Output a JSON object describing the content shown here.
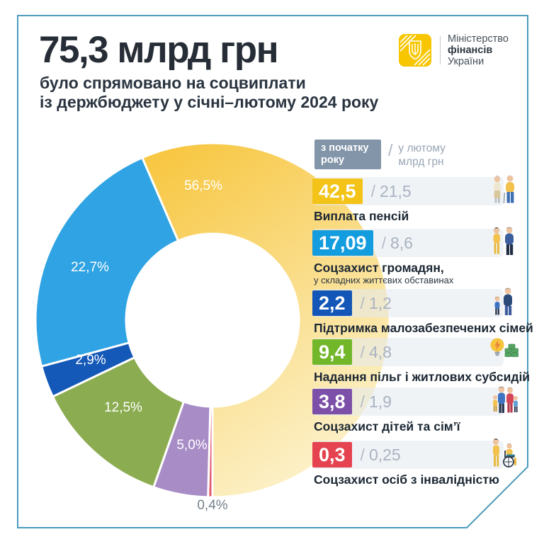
{
  "page": {
    "card_border_color": "#4C9CBE",
    "background": "#FFFFFF"
  },
  "header": {
    "amount": "75,3 млрд грн",
    "subtitle_line1": "було спрямовано на соцвиплати",
    "subtitle_line2": "із держбюджету у січні–лютому 2024 року"
  },
  "logo": {
    "line1": "Міністерство",
    "line2": "фінансів",
    "line3": "України"
  },
  "legend": {
    "header_box_label": "з початку року",
    "separator": "/",
    "header_right_label": "у лютому млрд грн",
    "items": [
      {
        "value": "42,5",
        "feb": "21,5",
        "label": "Виплата пенсій",
        "box_color": "#F3C317",
        "icon": "pensioners-icon"
      },
      {
        "value": "17,09",
        "feb": "8,6",
        "label": "Соцзахист громадян,",
        "sub": "у складних життєвих обставинах",
        "box_color": "#149DDE",
        "icon": "citizens-icon"
      },
      {
        "value": "2,2",
        "feb": "1,2",
        "label": "Підтримка малозабезпечених сімей",
        "box_color": "#1356B8",
        "icon": "low-income-family-icon"
      },
      {
        "value": "9,4",
        "feb": "4,8",
        "label": "Надання пільг і житлових субсидій",
        "box_color": "#72B62A",
        "icon": "subsidies-icon"
      },
      {
        "value": "3,8",
        "feb": "1,9",
        "label": "Соцзахист дітей та сім’ї",
        "box_color": "#7C50A8",
        "icon": "children-family-icon"
      },
      {
        "value": "0,3",
        "feb": "0,25",
        "label": "Соцзахист осіб з інвалідністю",
        "box_color": "#E4434F",
        "icon": "disability-icon"
      }
    ]
  },
  "chart_data": {
    "type": "pie",
    "subtype": "donut",
    "title": "75,3 млрд грн було спрямовано на соцвиплати із держбюджету у січні–лютому 2024 року",
    "units": "млрд грн",
    "total": 75.3,
    "legend_note": "з початку року / у лютому, млрд грн",
    "direction": "clockwise",
    "start_angle_deg_from_top": -23.4,
    "draw_order": [
      0,
      5,
      4,
      3,
      2,
      1
    ],
    "slices": [
      {
        "label": "Виплата пенсій",
        "value": 42.5,
        "february_value": 21.5,
        "percent": 56.5,
        "percent_label": "56,5%",
        "color": "#F8C845",
        "color_end": "#FCF2CC"
      },
      {
        "label": "Соцзахист громадян, у складних життєвих обставинах",
        "value": 17.09,
        "february_value": 8.6,
        "percent": 22.7,
        "percent_label": "22,7%",
        "color": "#2FA3E3"
      },
      {
        "label": "Підтримка малозабезпечених сімей",
        "value": 2.2,
        "february_value": 1.2,
        "percent": 2.9,
        "percent_label": "2,9%",
        "color": "#1458B8"
      },
      {
        "label": "Надання пільг і житлових субсидій",
        "value": 9.4,
        "february_value": 4.8,
        "percent": 12.5,
        "percent_label": "12,5%",
        "color": "#8BAC50"
      },
      {
        "label": "Соцзахист дітей та сім’ї",
        "value": 3.8,
        "february_value": 1.9,
        "percent": 5.0,
        "percent_label": "5,0%",
        "color": "#A78CC6"
      },
      {
        "label": "Соцзахист осіб з інвалідністю",
        "value": 0.3,
        "february_value": 0.25,
        "percent": 0.4,
        "percent_label": "0,4%",
        "color": "#E15A6C"
      }
    ]
  }
}
